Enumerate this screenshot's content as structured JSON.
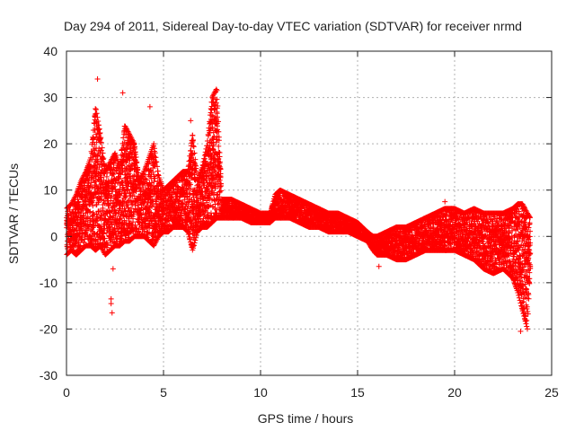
{
  "chart_data": {
    "type": "scatter",
    "title": "Day 294 of 2011, Sidereal Day-to-day VTEC variation (SDTVAR) for receiver nrmd",
    "xlabel": "GPS time / hours",
    "ylabel": "SDTVAR / TECUs",
    "xlim": [
      0,
      25
    ],
    "ylim": [
      -30,
      40
    ],
    "xticks": [
      0,
      5,
      10,
      15,
      20,
      25
    ],
    "yticks": [
      -30,
      -20,
      -10,
      0,
      10,
      20,
      30,
      40
    ],
    "grid": true,
    "marker": "+",
    "series_color": "#ff0000",
    "envelope_hours": [
      0,
      0.25,
      0.5,
      0.75,
      1.0,
      1.25,
      1.5,
      1.75,
      2.0,
      2.25,
      2.5,
      2.75,
      3.0,
      3.25,
      3.5,
      3.75,
      4.0,
      4.25,
      4.5,
      4.75,
      5.0,
      5.25,
      5.5,
      5.75,
      6.0,
      6.25,
      6.5,
      6.75,
      7.0,
      7.25,
      7.5,
      7.75,
      8.0,
      8.5,
      9.0,
      9.5,
      10.0,
      10.5,
      10.75,
      11.0,
      11.5,
      12.0,
      12.5,
      13.0,
      13.5,
      14.0,
      14.5,
      15.0,
      15.5,
      15.8,
      16.0,
      16.5,
      17.0,
      17.5,
      18.0,
      18.5,
      19.0,
      19.5,
      20.0,
      20.5,
      21.0,
      21.5,
      22.0,
      22.5,
      23.0,
      23.25,
      23.5,
      23.75,
      23.9
    ],
    "envelope_upper": [
      6,
      7,
      9,
      12,
      14,
      17,
      28,
      22,
      14,
      16,
      18,
      15,
      24,
      22,
      20,
      12,
      14,
      17,
      20,
      13,
      10,
      11,
      12,
      13,
      14,
      14,
      22,
      12,
      15,
      20,
      30,
      32,
      8,
      8,
      7,
      6,
      5,
      5,
      9,
      10,
      9,
      8,
      7,
      6,
      5,
      5,
      4,
      3,
      1,
      0,
      0,
      1,
      2,
      2,
      3,
      4,
      5,
      6,
      6,
      5,
      6,
      5,
      5,
      5,
      6,
      7,
      7,
      5,
      4
    ],
    "envelope_lower": [
      -4,
      -3,
      -4,
      -3,
      -2,
      -2,
      -3,
      -2,
      -4,
      -3,
      -2,
      -2,
      -1,
      -1,
      0,
      0,
      0,
      -1,
      -2,
      0,
      1,
      1,
      2,
      2,
      2,
      1,
      -3,
      1,
      2,
      2,
      3,
      4,
      4,
      4,
      4,
      3,
      3,
      3,
      4,
      4,
      4,
      3,
      2,
      2,
      1,
      1,
      1,
      0,
      -1,
      -3,
      -4,
      -4,
      -5,
      -5,
      -4,
      -3,
      -3,
      -3,
      -3,
      -4,
      -5,
      -7,
      -8,
      -7,
      -9,
      -12,
      -16,
      -20,
      -6
    ],
    "outliers": [
      {
        "x": 2.3,
        "y": -13.5
      },
      {
        "x": 2.3,
        "y": -14.5
      },
      {
        "x": 2.35,
        "y": -16.5
      },
      {
        "x": 2.4,
        "y": -7
      },
      {
        "x": 1.6,
        "y": 34
      },
      {
        "x": 2.9,
        "y": 31
      },
      {
        "x": 6.4,
        "y": 25
      },
      {
        "x": 6.2,
        "y": 8.5
      },
      {
        "x": 16.1,
        "y": -6.5
      },
      {
        "x": 19.5,
        "y": 7.5
      },
      {
        "x": 1.1,
        "y": 15
      },
      {
        "x": 4.3,
        "y": 28
      },
      {
        "x": 23.4,
        "y": -20.5
      }
    ]
  }
}
